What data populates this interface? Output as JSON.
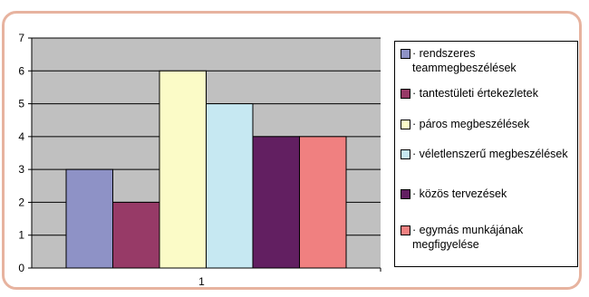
{
  "chart_data": {
    "type": "bar",
    "categories": [
      "1"
    ],
    "series": [
      {
        "name": "· rendszeres teammegbeszélések",
        "values": [
          3
        ],
        "color": "#8e92c6"
      },
      {
        "name": "· tantestületi értekezletek",
        "values": [
          2
        ],
        "color": "#973a67"
      },
      {
        "name": "· páros megbeszélések",
        "values": [
          6
        ],
        "color": "#fbfbc7"
      },
      {
        "name": "· véletlenszerű megbeszélések",
        "values": [
          5
        ],
        "color": "#c6e8f2"
      },
      {
        "name": "· közös tervezések",
        "values": [
          4
        ],
        "color": "#621f61"
      },
      {
        "name": "· egymás munkájának megfigyelése",
        "values": [
          4
        ],
        "color": "#f08080"
      }
    ],
    "title": "",
    "xlabel": "",
    "ylabel": "",
    "ylim": [
      0,
      7
    ],
    "yticks": [
      "0",
      "1",
      "2",
      "3",
      "4",
      "5",
      "6",
      "7"
    ],
    "grid": true,
    "plot_background": "#c0c0c0",
    "legend": "right"
  }
}
